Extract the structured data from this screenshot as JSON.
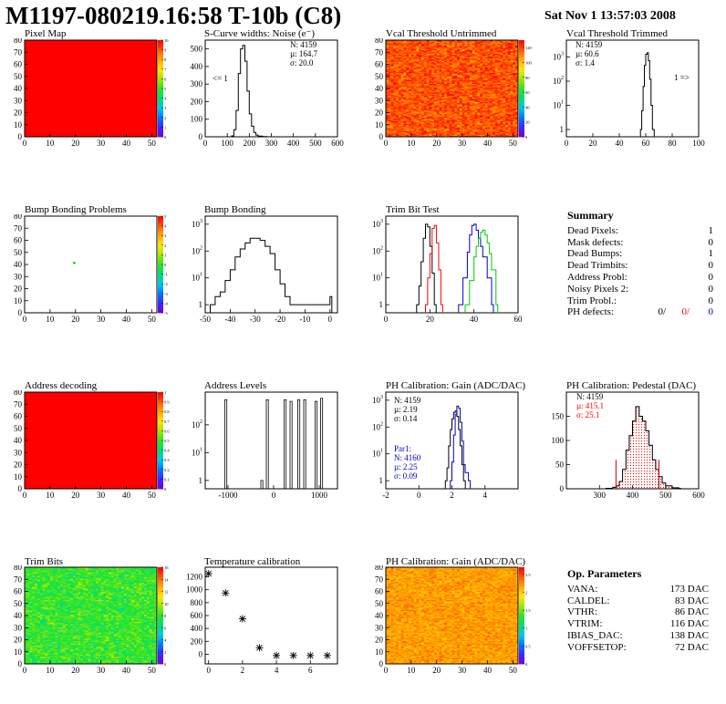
{
  "header": {
    "title": "M1197-080219.16:58 T-10b (C8)",
    "timestamp": "Sat Nov  1 13:57:03 2008"
  },
  "panels": {
    "pixel_map": {
      "title": "Pixel Map"
    },
    "scurve": {
      "title": "S-Curve widths: Noise (e⁻)",
      "stats": [
        "N: 4159",
        "µ: 164.7",
        "σ: 20.0"
      ],
      "annotation": "<= 1"
    },
    "vcal_untrimmed": {
      "title": "Vcal Threshold Untrimmed"
    },
    "vcal_trimmed": {
      "title": "Vcal Threshold Trimmed",
      "stats": [
        "N: 4159",
        "µ: 60.6",
        "σ:  1.4"
      ],
      "annotation": "1 =>"
    },
    "bump_problems": {
      "title": "Bump Bonding Problems"
    },
    "bump_bonding": {
      "title": "Bump Bonding"
    },
    "trim_bit_test": {
      "title": "Trim Bit Test"
    },
    "address_decoding": {
      "title": "Address decoding"
    },
    "address_levels": {
      "title": "Address Levels"
    },
    "ph_gain": {
      "title": "PH Calibration: Gain (ADC/DAC)",
      "stats": [
        "N: 4159",
        "µ: 2.19",
        "σ: 0.14"
      ],
      "stats2_title": "Par1:",
      "stats2": [
        "N: 4160",
        "µ: 2.25",
        "σ: 0.09"
      ]
    },
    "ph_pedestal": {
      "title": "PH Calibration: Pedestal (DAC)",
      "stats": [
        "N: 4159",
        "µ: 415.1",
        "σ: 25.1"
      ]
    },
    "trim_bits": {
      "title": "Trim Bits"
    },
    "temperature": {
      "title": "Temperature calibration"
    },
    "ph_gain_map": {
      "title": "PH Calibration: Gain (ADC/DAC)"
    }
  },
  "summary": {
    "title": "Summary",
    "rows": [
      {
        "label": "Dead Pixels:",
        "value": "1"
      },
      {
        "label": "Mask defects:",
        "value": "0"
      },
      {
        "label": "Dead Bumps:",
        "value": "1"
      },
      {
        "label": "Dead Trimbits:",
        "value": "0"
      },
      {
        "label": "Address Probl:",
        "value": "0"
      },
      {
        "label": "Noisy Pixels 2:",
        "value": "0"
      },
      {
        "label": "Trim Probl.:",
        "value": "0"
      }
    ],
    "ph_defects": {
      "label": "PH defects:",
      "v1": "0/",
      "v2": "0/",
      "v3": "0"
    }
  },
  "op_parameters": {
    "title": "Op. Parameters",
    "rows": [
      {
        "label": "VANA:",
        "value": "173 DAC"
      },
      {
        "label": "CALDEL:",
        "value": "83 DAC"
      },
      {
        "label": "VTHR:",
        "value": "86 DAC"
      },
      {
        "label": "VTRIM:",
        "value": "116 DAC"
      },
      {
        "label": "IBIAS_DAC:",
        "value": "138 DAC"
      },
      {
        "label": "VOFFSETOP:",
        "value": "72 DAC"
      }
    ]
  },
  "colors": {
    "red": "#ff0000",
    "blue": "#0000cc",
    "green": "#00cc00",
    "black": "#000000"
  },
  "chart_data": [
    {
      "id": "pixel_map",
      "type": "heatmap",
      "title": "Pixel Map",
      "xlim": [
        0,
        52
      ],
      "ylim": [
        0,
        80
      ],
      "xticks": [
        0,
        10,
        20,
        30,
        40,
        50
      ],
      "yticks": [
        0,
        10,
        20,
        30,
        40,
        50,
        60,
        70,
        80
      ],
      "zlim": [
        0,
        10
      ],
      "zticks": [
        0,
        1,
        2,
        3,
        4,
        5,
        6,
        7,
        8,
        9,
        10
      ],
      "uniform_value": 10
    },
    {
      "id": "scurve",
      "type": "line",
      "title": "S-Curve widths: Noise (e⁻)",
      "xlim": [
        0,
        600
      ],
      "ylim": [
        0,
        550
      ],
      "xticks": [
        0,
        100,
        200,
        300,
        400,
        500,
        600
      ],
      "yticks": [
        0,
        100,
        200,
        300,
        400,
        500
      ],
      "x": [
        100,
        120,
        130,
        140,
        150,
        160,
        170,
        180,
        190,
        200,
        210,
        220,
        230,
        240,
        260,
        280
      ],
      "y": [
        0,
        5,
        40,
        150,
        360,
        500,
        520,
        430,
        260,
        130,
        60,
        25,
        10,
        4,
        1,
        0
      ]
    },
    {
      "id": "vcal_untrimmed",
      "type": "heatmap",
      "title": "Vcal Threshold Untrimmed",
      "xlim": [
        0,
        52
      ],
      "ylim": [
        0,
        80
      ],
      "xticks": [
        0,
        10,
        20,
        30,
        40,
        50
      ],
      "yticks": [
        0,
        10,
        20,
        30,
        40,
        50,
        60,
        70,
        80
      ],
      "zlim": [
        0,
        130
      ],
      "zticks": [
        0,
        20,
        40,
        60,
        80,
        100,
        120
      ],
      "value_mean": 118,
      "value_spread": 8
    },
    {
      "id": "vcal_trimmed",
      "type": "line",
      "title": "Vcal Threshold Trimmed",
      "xlim": [
        0,
        100
      ],
      "ylim_log": [
        0.5,
        5000
      ],
      "log_y": true,
      "xticks": [
        0,
        20,
        40,
        60,
        80,
        100
      ],
      "yticks": [
        1,
        10,
        100,
        1000
      ],
      "x": [
        56,
        57,
        58,
        59,
        60,
        61,
        62,
        63,
        64,
        65
      ],
      "y": [
        1,
        6,
        60,
        450,
        1300,
        1500,
        700,
        120,
        10,
        1
      ]
    },
    {
      "id": "bump_problems",
      "type": "heatmap",
      "title": "Bump Bonding Problems",
      "xlim": [
        0,
        52
      ],
      "ylim": [
        0,
        80
      ],
      "xticks": [
        0,
        10,
        20,
        30,
        40,
        50
      ],
      "yticks": [
        0,
        10,
        20,
        30,
        40,
        50,
        60,
        70,
        80
      ],
      "zlim": [
        -5,
        5
      ],
      "zticks": [
        -5,
        -4,
        -3,
        -2,
        -1,
        0,
        1,
        2,
        3,
        4,
        5
      ],
      "points": [
        {
          "x": 19,
          "y": 41
        }
      ]
    },
    {
      "id": "bump_bonding",
      "type": "line",
      "title": "Bump Bonding",
      "xlim": [
        -50,
        3
      ],
      "ylim_log": [
        0.5,
        2000
      ],
      "log_y": true,
      "xticks": [
        -50,
        -40,
        -30,
        -20,
        -10,
        0
      ],
      "yticks": [
        1,
        10,
        100,
        1000
      ],
      "x": [
        -48,
        -46,
        -44,
        -42,
        -40,
        -38,
        -36,
        -34,
        -32,
        -30,
        -28,
        -26,
        -24,
        -22,
        -20,
        -18,
        -16,
        0
      ],
      "y": [
        1,
        2,
        3,
        8,
        20,
        60,
        120,
        200,
        300,
        300,
        250,
        150,
        80,
        20,
        6,
        2,
        1,
        2
      ]
    },
    {
      "id": "trim_bit_test",
      "type": "line",
      "title": "Trim Bit Test",
      "xlim": [
        0,
        60
      ],
      "ylim_log": [
        0.5,
        2000
      ],
      "log_y": true,
      "xticks": [
        0,
        20,
        40,
        60
      ],
      "yticks": [
        1,
        10,
        100,
        1000
      ],
      "series": [
        {
          "color": "#000000",
          "x": [
            14,
            15,
            16,
            17,
            18,
            19,
            20,
            21,
            22
          ],
          "y": [
            1,
            5,
            40,
            300,
            1000,
            800,
            150,
            15,
            1
          ]
        },
        {
          "color": "#ff0000",
          "x": [
            18,
            19,
            20,
            21,
            22,
            23,
            24,
            25
          ],
          "y": [
            1,
            10,
            80,
            700,
            900,
            200,
            20,
            1
          ]
        },
        {
          "color": "#0000cc",
          "x": [
            33,
            35,
            37,
            38,
            39,
            40,
            41,
            42,
            43,
            44,
            46,
            48
          ],
          "y": [
            1,
            10,
            90,
            400,
            900,
            1000,
            600,
            300,
            150,
            60,
            10,
            1
          ]
        },
        {
          "color": "#00cc00",
          "x": [
            36,
            38,
            40,
            41,
            42,
            43,
            44,
            45,
            46,
            47,
            48,
            50
          ],
          "y": [
            1,
            8,
            60,
            150,
            300,
            500,
            600,
            400,
            200,
            80,
            20,
            1
          ]
        }
      ]
    },
    {
      "id": "address_decoding",
      "type": "heatmap",
      "title": "Address decoding",
      "xlim": [
        0,
        52
      ],
      "ylim": [
        0,
        80
      ],
      "xticks": [
        0,
        10,
        20,
        30,
        40,
        50
      ],
      "yticks": [
        0,
        10,
        20,
        30,
        40,
        50,
        60,
        70,
        80
      ],
      "zlim": [
        0,
        1
      ],
      "zticks": [
        0,
        0.1,
        0.2,
        0.3,
        0.4,
        0.5,
        0.6,
        0.7,
        0.8,
        0.9,
        1
      ],
      "uniform_value": 1
    },
    {
      "id": "address_levels",
      "type": "bar",
      "title": "Address Levels",
      "xlim": [
        -1500,
        1400
      ],
      "ylim_log": [
        0.5,
        1500
      ],
      "log_y": true,
      "xticks": [
        -1000,
        0,
        1000
      ],
      "yticks": [
        1,
        10,
        100
      ],
      "x": [
        -1050,
        -260,
        -140,
        250,
        380,
        550,
        680,
        930,
        1050
      ],
      "y": [
        800,
        1,
        800,
        800,
        700,
        800,
        800,
        700,
        900
      ]
    },
    {
      "id": "ph_gain",
      "type": "line",
      "title": "PH Calibration: Gain (ADC/DAC)",
      "xlim": [
        -2,
        6
      ],
      "ylim_log": [
        0.5,
        2000
      ],
      "log_y": true,
      "xticks": [
        -2,
        0,
        2,
        4
      ],
      "yticks": [
        1,
        10,
        100,
        1000
      ],
      "series": [
        {
          "color": "#000000",
          "x": [
            1.6,
            1.7,
            1.8,
            1.9,
            2.0,
            2.1,
            2.2,
            2.3,
            2.4,
            2.5,
            2.6,
            2.7
          ],
          "y": [
            1,
            3,
            20,
            80,
            200,
            350,
            400,
            250,
            80,
            20,
            4,
            1
          ]
        },
        {
          "color": "#0000cc",
          "x": [
            1.9,
            2.0,
            2.1,
            2.2,
            2.3,
            2.4,
            2.5,
            2.6,
            2.7,
            2.8,
            3.0
          ],
          "y": [
            1,
            5,
            50,
            300,
            600,
            500,
            150,
            30,
            4,
            2,
            1
          ]
        }
      ]
    },
    {
      "id": "ph_pedestal",
      "type": "bar",
      "title": "PH Calibration: Pedestal (DAC)",
      "xlim": [
        200,
        600
      ],
      "ylim": [
        0,
        200
      ],
      "xticks": [
        300,
        400,
        500,
        600
      ],
      "yticks": [
        0,
        50,
        100,
        150
      ],
      "x": [
        320,
        340,
        350,
        360,
        370,
        380,
        390,
        400,
        410,
        420,
        430,
        440,
        450,
        460,
        470,
        480,
        490,
        500,
        520,
        540
      ],
      "y": [
        1,
        3,
        6,
        15,
        40,
        80,
        110,
        140,
        170,
        150,
        140,
        120,
        90,
        60,
        40,
        25,
        12,
        6,
        2,
        1
      ],
      "markers": [
        350,
        480
      ]
    },
    {
      "id": "trim_bits",
      "type": "heatmap",
      "title": "Trim Bits",
      "xlim": [
        0,
        52
      ],
      "ylim": [
        0,
        80
      ],
      "xticks": [
        0,
        10,
        20,
        30,
        40,
        50
      ],
      "yticks": [
        0,
        10,
        20,
        30,
        40,
        50,
        60,
        70,
        80
      ],
      "zlim": [
        0,
        16
      ],
      "zticks": [
        0,
        2,
        4,
        6,
        8,
        10,
        12,
        14,
        16
      ],
      "value_mean": 8,
      "value_spread": 1.2
    },
    {
      "id": "temperature",
      "type": "scatter",
      "title": "Temperature calibration",
      "xlim": [
        -0.2,
        7.6
      ],
      "ylim": [
        -150,
        1350
      ],
      "xticks": [
        0,
        2,
        4,
        6
      ],
      "yticks": [
        0,
        200,
        400,
        600,
        800,
        1000,
        1200
      ],
      "x": [
        0,
        1,
        2,
        3,
        4,
        5,
        6,
        7
      ],
      "y": [
        1250,
        950,
        550,
        100,
        -20,
        -20,
        -20,
        -20
      ]
    },
    {
      "id": "ph_gain_map",
      "type": "heatmap",
      "title": "PH Calibration: Gain (ADC/DAC)",
      "xlim": [
        0,
        52
      ],
      "ylim": [
        0,
        80
      ],
      "xticks": [
        0,
        10,
        20,
        30,
        40,
        50
      ],
      "yticks": [
        0,
        10,
        20,
        30,
        40,
        50,
        60,
        70,
        80
      ],
      "zlim": [
        0,
        2.7
      ],
      "zticks": [
        0,
        0.5,
        1,
        1.5,
        2,
        2.5
      ],
      "value_mean": 2.2,
      "value_spread": 0.12
    }
  ]
}
